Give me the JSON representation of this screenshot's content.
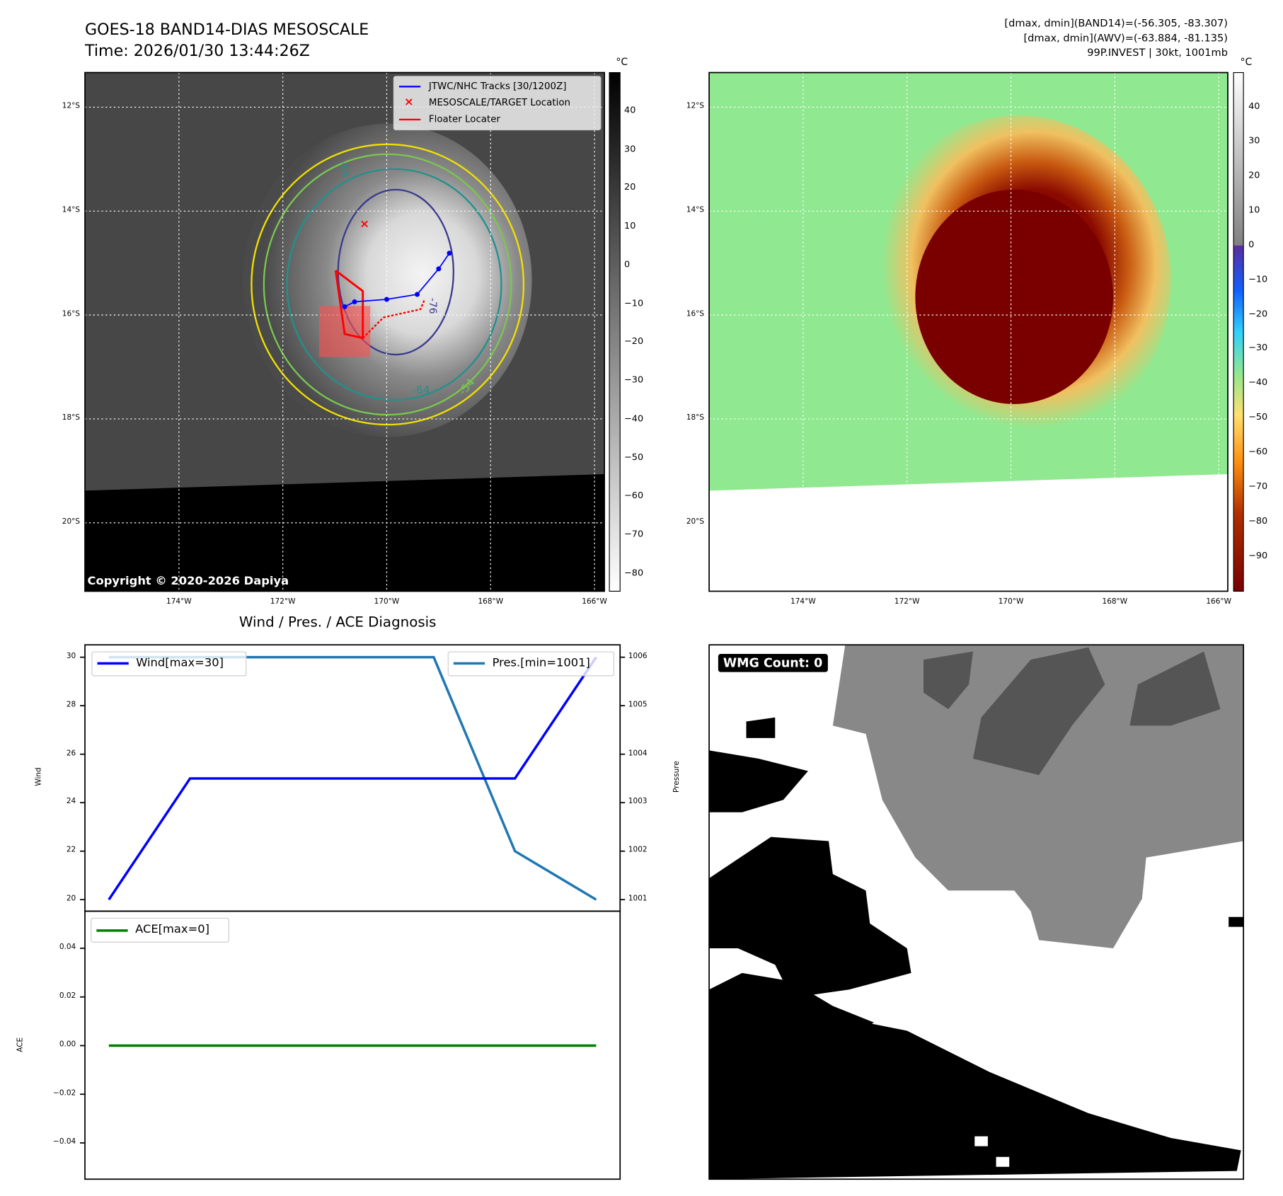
{
  "header": {
    "title_line1": "GOES-18 BAND14-DIAS MESOSCALE",
    "title_line2": "Time: 2026/01/30 13:44:26Z",
    "info_line1": "[dmax, dmin](BAND14)=(-56.305, -83.307)",
    "info_line2": "[dmax, dmin](AWV)=(-63.884, -81.135)",
    "info_line3": "99P.INVEST | 30kt, 1001mb"
  },
  "map": {
    "lon_labels": [
      "174°W",
      "172°W",
      "170°W",
      "168°W",
      "166°W"
    ],
    "lat_labels": [
      "12°S",
      "14°S",
      "16°S",
      "18°S",
      "20°S"
    ],
    "copyright": "Copyright © 2020-2026 Dapiya",
    "contour_labels": [
      "-64",
      "-54",
      "-76",
      "-64"
    ],
    "legend": {
      "tracks": "JTWC/NHC Tracks [30/1200Z]",
      "target": "MESOSCALE/TARGET Location",
      "floater": "Floater Locater"
    },
    "colorbar1": {
      "unit": "°C",
      "ticks": [
        "40",
        "30",
        "20",
        "10",
        "0",
        "−10",
        "−20",
        "−30",
        "−40",
        "−50",
        "−60",
        "−70",
        "−80"
      ],
      "range": [
        50,
        -85
      ]
    },
    "colorbar2": {
      "unit": "°C",
      "ticks": [
        "40",
        "30",
        "20",
        "10",
        "0",
        "−10",
        "−20",
        "−30",
        "−40",
        "−50",
        "−60",
        "−70",
        "−80",
        "−90"
      ],
      "range": [
        50,
        -100
      ]
    }
  },
  "chart_data": [
    {
      "type": "line",
      "title": "Wind / Pres. / ACE Diagnosis",
      "x": [
        0,
        1,
        2,
        3,
        4,
        5,
        6
      ],
      "ylabel": "Wind",
      "y2label": "Pressure",
      "ylim": [
        19.5,
        30.5
      ],
      "y2lim": [
        1000.95,
        1006.05
      ],
      "yticks": [
        "20",
        "22",
        "24",
        "26",
        "28",
        "30"
      ],
      "y2ticks": [
        "1001",
        "1002",
        "1003",
        "1004",
        "1005",
        "1006"
      ],
      "series": [
        {
          "name": "Wind[max=30]",
          "color": "#0000ff",
          "axis": "left",
          "values": [
            20,
            25,
            25,
            25,
            25,
            25,
            30
          ]
        },
        {
          "name": "Pres.[min=1001]",
          "color": "#1f77b4",
          "axis": "right",
          "values": [
            1006,
            1006,
            1006,
            1006,
            1006,
            1002,
            1001
          ]
        }
      ]
    },
    {
      "type": "line",
      "ylabel": "ACE",
      "ylim": [
        -0.055,
        0.055
      ],
      "yticks": [
        "0.04",
        "0.02",
        "0.00",
        "−0.02",
        "−0.04"
      ],
      "series": [
        {
          "name": "ACE[max=0]",
          "color": "#008000",
          "values": [
            0,
            0,
            0,
            0,
            0,
            0,
            0
          ]
        }
      ]
    }
  ],
  "wmg": {
    "label": "WMG Count: 0"
  }
}
